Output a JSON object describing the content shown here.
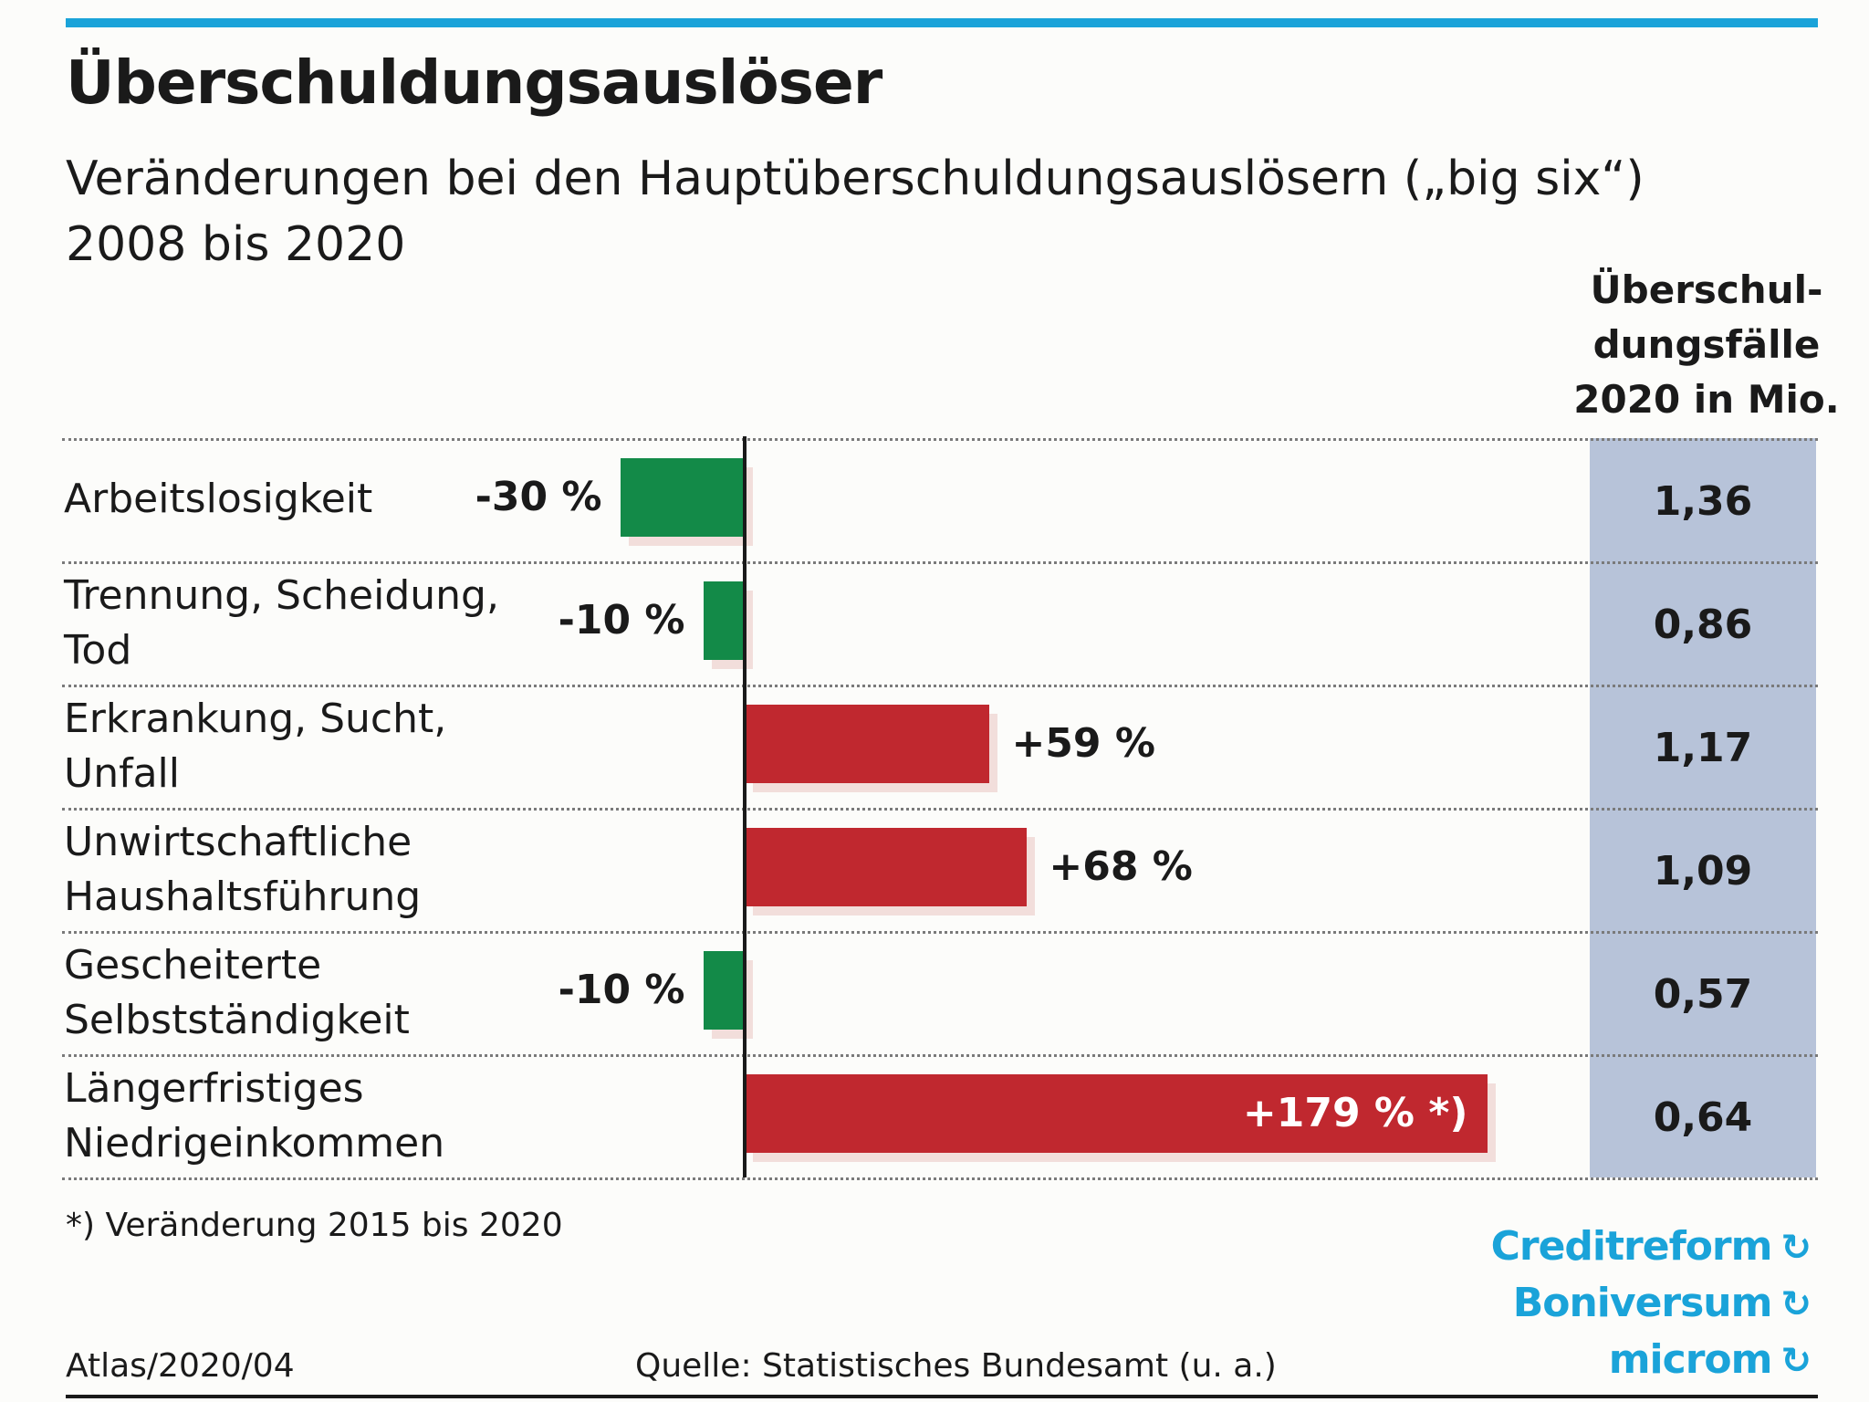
{
  "chart_data": {
    "type": "bar",
    "title": "Überschuldungsauslöser",
    "subtitle": "Veränderungen bei den Hauptüberschuldungsauslösern („big six“) 2008 bis 2020",
    "column_header": "Überschul- dungsfälle 2020 in Mio.",
    "categories": [
      "Arbeitslosigkeit",
      "Trennung, Scheidung, Tod",
      "Erkrankung, Sucht, Unfall",
      "Unwirtschaftliche Haushaltsführung",
      "Gescheiterte Selbstständigkeit",
      "Längerfristiges Niedrigeinkommen"
    ],
    "series": [
      {
        "name": "Veränderung",
        "values": [
          -30,
          -10,
          59,
          68,
          -10,
          179
        ],
        "labels": [
          "-30 %",
          "-10 %",
          "+59 %",
          "+68 %",
          "-10 %",
          "+179 % *)"
        ]
      },
      {
        "name": "Überschuldungsfälle 2020 in Mio.",
        "values": [
          "1,36",
          "0,86",
          "1,17",
          "1,09",
          "0,57",
          "0,64"
        ]
      }
    ],
    "xlim": [
      -30,
      179
    ],
    "colors": {
      "negative": "#138a48",
      "positive": "#c0282f",
      "value_column": "#b7c3d9"
    }
  },
  "footnote": "*) Veränderung 2015 bis 2020",
  "credit": "Atlas/2020/04",
  "source": "Quelle: Statistisches Bundesamt (u. a.)",
  "logos": [
    "Creditreform",
    "Boniversum",
    "microm"
  ]
}
